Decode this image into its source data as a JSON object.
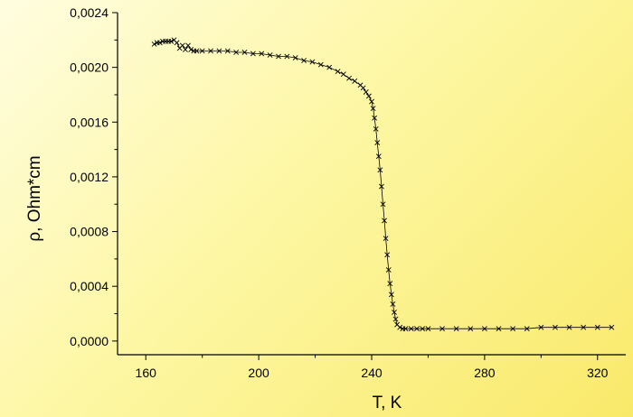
{
  "chart_data": {
    "type": "scatter",
    "title": "",
    "xlabel": "T, K",
    "ylabel": "ρ, Ohm*cm",
    "xlim": [
      150,
      330
    ],
    "ylim": [
      -0.0001,
      0.0024
    ],
    "xticks": [
      "160",
      "200",
      "240",
      "280",
      "320"
    ],
    "yticks": [
      "0,0000",
      "0,0004",
      "0,0008",
      "0,0012",
      "0,0016",
      "0,0020",
      "0,0024"
    ],
    "grid": false,
    "legend": "none",
    "marker": "x",
    "color": "#000000",
    "series": [
      {
        "x": [
          163,
          164,
          165,
          166,
          167,
          168,
          169,
          170,
          171,
          172,
          173,
          174,
          175,
          176,
          177,
          178,
          180,
          183,
          186,
          189,
          192,
          195,
          198,
          201,
          204,
          207,
          210,
          213,
          216,
          219,
          222,
          225,
          228,
          230,
          232,
          234,
          236,
          237,
          238,
          239,
          240,
          240.5,
          241,
          241.5,
          242,
          242.5,
          243,
          243.5,
          244,
          244.5,
          245,
          245.5,
          246,
          246.5,
          247,
          247.5,
          248,
          248.5,
          249,
          250,
          251,
          252,
          254,
          256,
          258,
          260,
          265,
          270,
          275,
          280,
          285,
          290,
          295,
          300,
          305,
          310,
          315,
          320,
          325
        ],
        "y": [
          0.00217,
          0.00218,
          0.00218,
          0.00219,
          0.00219,
          0.00219,
          0.00219,
          0.0022,
          0.00218,
          0.00214,
          0.00216,
          0.00213,
          0.00216,
          0.00213,
          0.00212,
          0.00212,
          0.00212,
          0.00212,
          0.00212,
          0.00212,
          0.00211,
          0.00211,
          0.0021,
          0.0021,
          0.00209,
          0.00208,
          0.00208,
          0.00207,
          0.00205,
          0.00204,
          0.00202,
          0.002,
          0.00197,
          0.00195,
          0.00192,
          0.0019,
          0.00187,
          0.00185,
          0.00182,
          0.00179,
          0.00175,
          0.0017,
          0.00163,
          0.00155,
          0.00145,
          0.00135,
          0.00125,
          0.00113,
          0.001,
          0.00088,
          0.00075,
          0.00063,
          0.00052,
          0.00042,
          0.00034,
          0.00027,
          0.00021,
          0.00016,
          0.00012,
          0.0001,
          9e-05,
          9e-05,
          9e-05,
          9e-05,
          9e-05,
          9e-05,
          9e-05,
          9e-05,
          9e-05,
          9e-05,
          9e-05,
          9e-05,
          9e-05,
          0.0001,
          0.0001,
          0.0001,
          0.0001,
          0.0001,
          0.0001
        ]
      }
    ]
  }
}
